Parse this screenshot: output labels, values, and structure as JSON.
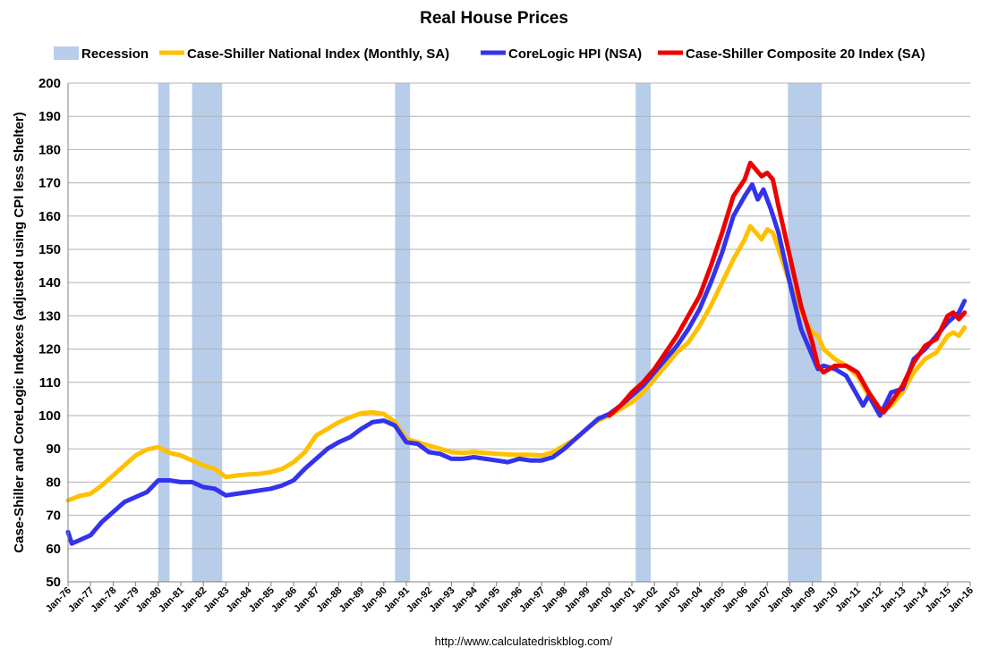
{
  "chart_data": {
    "type": "line",
    "title": "Real House Prices",
    "ylabel": "Case-Shiller and CoreLogic Indexes (adjusted using CPI less Shelter)",
    "xlabel": "",
    "source": "http://www.calculatedriskblog.com/",
    "ylim": [
      50,
      200
    ],
    "yticks": [
      50,
      60,
      70,
      80,
      90,
      100,
      110,
      120,
      130,
      140,
      150,
      160,
      170,
      180,
      190,
      200
    ],
    "xlim": [
      "1976-01",
      "2016-01"
    ],
    "xtick_labels": [
      "Jan-76",
      "Jan-77",
      "Jan-78",
      "Jan-79",
      "Jan-80",
      "Jan-81",
      "Jan-82",
      "Jan-83",
      "Jan-84",
      "Jan-85",
      "Jan-86",
      "Jan-87",
      "Jan-88",
      "Jan-89",
      "Jan-90",
      "Jan-91",
      "Jan-92",
      "Jan-93",
      "Jan-94",
      "Jan-95",
      "Jan-96",
      "Jan-97",
      "Jan-98",
      "Jan-99",
      "Jan-00",
      "Jan-01",
      "Jan-02",
      "Jan-03",
      "Jan-04",
      "Jan-05",
      "Jan-06",
      "Jan-07",
      "Jan-08",
      "Jan-09",
      "Jan-10",
      "Jan-11",
      "Jan-12",
      "Jan-13",
      "Jan-14",
      "Jan-15",
      "Jan-16"
    ],
    "grid": true,
    "legend_position": "top",
    "recession_label": "Recession",
    "recession_color": "#b7cdea",
    "recessions": [
      [
        "1980-01",
        "1980-07"
      ],
      [
        "1981-07",
        "1982-11"
      ],
      [
        "1990-07",
        "1991-03"
      ],
      [
        "2001-03",
        "2001-11"
      ],
      [
        "2007-12",
        "2009-06"
      ]
    ],
    "series": [
      {
        "name": "Case-Shiller National Index (Monthly, SA)",
        "color": "#ffc000",
        "points": [
          [
            "1976-01",
            74.5
          ],
          [
            "1976-07",
            75.8
          ],
          [
            "1977-01",
            76.5
          ],
          [
            "1977-07",
            79
          ],
          [
            "1978-01",
            82
          ],
          [
            "1978-07",
            85
          ],
          [
            "1979-01",
            88
          ],
          [
            "1979-07",
            89.8
          ],
          [
            "1980-01",
            90.5
          ],
          [
            "1980-07",
            88.8
          ],
          [
            "1981-01",
            88
          ],
          [
            "1981-07",
            86.5
          ],
          [
            "1982-01",
            85
          ],
          [
            "1982-07",
            84
          ],
          [
            "1983-01",
            81.5
          ],
          [
            "1983-07",
            82
          ],
          [
            "1984-01",
            82.3
          ],
          [
            "1984-07",
            82.5
          ],
          [
            "1985-01",
            83
          ],
          [
            "1985-07",
            84
          ],
          [
            "1986-01",
            86
          ],
          [
            "1986-07",
            89
          ],
          [
            "1987-01",
            94
          ],
          [
            "1987-07",
            96
          ],
          [
            "1988-01",
            98
          ],
          [
            "1988-07",
            99.5
          ],
          [
            "1989-01",
            100.7
          ],
          [
            "1989-07",
            101
          ],
          [
            "1990-01",
            100.5
          ],
          [
            "1990-07",
            98
          ],
          [
            "1991-01",
            93
          ],
          [
            "1991-07",
            92
          ],
          [
            "1992-01",
            91
          ],
          [
            "1992-07",
            90
          ],
          [
            "1993-01",
            89
          ],
          [
            "1993-07",
            88.8
          ],
          [
            "1994-01",
            89
          ],
          [
            "1994-07",
            88.8
          ],
          [
            "1995-01",
            88.5
          ],
          [
            "1995-07",
            88.3
          ],
          [
            "1996-01",
            88.2
          ],
          [
            "1996-07",
            88.2
          ],
          [
            "1997-01",
            88
          ],
          [
            "1997-07",
            89
          ],
          [
            "1998-01",
            91
          ],
          [
            "1998-07",
            93
          ],
          [
            "1999-01",
            96
          ],
          [
            "1999-07",
            98.5
          ],
          [
            "2000-01",
            100
          ],
          [
            "2000-07",
            102
          ],
          [
            "2001-01",
            104
          ],
          [
            "2001-07",
            107
          ],
          [
            "2002-01",
            111
          ],
          [
            "2002-07",
            115
          ],
          [
            "2003-01",
            119
          ],
          [
            "2003-07",
            122
          ],
          [
            "2004-01",
            127
          ],
          [
            "2004-07",
            133
          ],
          [
            "2005-01",
            140
          ],
          [
            "2005-07",
            147
          ],
          [
            "2006-01",
            153
          ],
          [
            "2006-04",
            157
          ],
          [
            "2006-07",
            155
          ],
          [
            "2006-10",
            153
          ],
          [
            "2007-01",
            156
          ],
          [
            "2007-04",
            155
          ],
          [
            "2007-07",
            150
          ],
          [
            "2008-01",
            140
          ],
          [
            "2008-07",
            131
          ],
          [
            "2009-01",
            125
          ],
          [
            "2009-04",
            124
          ],
          [
            "2009-07",
            120
          ],
          [
            "2010-01",
            117
          ],
          [
            "2010-07",
            115
          ],
          [
            "2011-01",
            112
          ],
          [
            "2011-07",
            106
          ],
          [
            "2012-01",
            101
          ],
          [
            "2012-07",
            103
          ],
          [
            "2013-01",
            107
          ],
          [
            "2013-07",
            113
          ],
          [
            "2014-01",
            117
          ],
          [
            "2014-07",
            119
          ],
          [
            "2015-01",
            124
          ],
          [
            "2015-04",
            125
          ],
          [
            "2015-07",
            124
          ],
          [
            "2015-10",
            126.5
          ]
        ]
      },
      {
        "name": "CoreLogic HPI (NSA)",
        "color": "#3333ee",
        "points": [
          [
            "1976-01",
            65
          ],
          [
            "1976-03",
            61.5
          ],
          [
            "1976-07",
            62.5
          ],
          [
            "1977-01",
            64
          ],
          [
            "1977-07",
            68
          ],
          [
            "1978-01",
            71
          ],
          [
            "1978-07",
            74
          ],
          [
            "1979-01",
            75.5
          ],
          [
            "1979-07",
            77
          ],
          [
            "1980-01",
            80.5
          ],
          [
            "1980-07",
            80.5
          ],
          [
            "1981-01",
            80
          ],
          [
            "1981-07",
            80
          ],
          [
            "1982-01",
            78.5
          ],
          [
            "1982-07",
            78
          ],
          [
            "1983-01",
            76
          ],
          [
            "1983-07",
            76.5
          ],
          [
            "1984-01",
            77
          ],
          [
            "1984-07",
            77.5
          ],
          [
            "1985-01",
            78
          ],
          [
            "1985-07",
            79
          ],
          [
            "1986-01",
            80.5
          ],
          [
            "1986-07",
            84
          ],
          [
            "1987-01",
            87
          ],
          [
            "1987-07",
            90
          ],
          [
            "1988-01",
            92
          ],
          [
            "1988-07",
            93.5
          ],
          [
            "1989-01",
            96
          ],
          [
            "1989-07",
            98
          ],
          [
            "1990-01",
            98.5
          ],
          [
            "1990-07",
            97
          ],
          [
            "1991-01",
            92
          ],
          [
            "1991-07",
            91.5
          ],
          [
            "1992-01",
            89
          ],
          [
            "1992-07",
            88.5
          ],
          [
            "1993-01",
            87
          ],
          [
            "1993-07",
            87
          ],
          [
            "1994-01",
            87.5
          ],
          [
            "1994-07",
            87
          ],
          [
            "1995-01",
            86.5
          ],
          [
            "1995-07",
            86
          ],
          [
            "1996-01",
            87
          ],
          [
            "1996-07",
            86.5
          ],
          [
            "1997-01",
            86.5
          ],
          [
            "1997-07",
            87.5
          ],
          [
            "1998-01",
            90
          ],
          [
            "1998-07",
            93
          ],
          [
            "1999-01",
            96
          ],
          [
            "1999-07",
            99
          ],
          [
            "2000-01",
            100.5
          ],
          [
            "2000-07",
            103
          ],
          [
            "2001-01",
            106
          ],
          [
            "2001-07",
            109
          ],
          [
            "2002-01",
            113
          ],
          [
            "2002-07",
            117
          ],
          [
            "2003-01",
            121
          ],
          [
            "2003-07",
            126
          ],
          [
            "2004-01",
            132
          ],
          [
            "2004-07",
            140
          ],
          [
            "2005-01",
            149
          ],
          [
            "2005-07",
            160
          ],
          [
            "2006-01",
            166
          ],
          [
            "2006-05",
            169.5
          ],
          [
            "2006-08",
            165
          ],
          [
            "2006-11",
            168
          ],
          [
            "2007-03",
            162
          ],
          [
            "2007-07",
            155
          ],
          [
            "2008-01",
            140
          ],
          [
            "2008-07",
            126
          ],
          [
            "2009-01",
            118
          ],
          [
            "2009-04",
            114
          ],
          [
            "2009-07",
            115
          ],
          [
            "2010-01",
            114
          ],
          [
            "2010-07",
            112
          ],
          [
            "2011-01",
            106
          ],
          [
            "2011-04",
            103
          ],
          [
            "2011-07",
            106
          ],
          [
            "2012-01",
            100
          ],
          [
            "2012-07",
            107
          ],
          [
            "2013-01",
            108
          ],
          [
            "2013-07",
            117
          ],
          [
            "2014-01",
            120
          ],
          [
            "2014-07",
            124
          ],
          [
            "2015-01",
            128
          ],
          [
            "2015-07",
            131
          ],
          [
            "2015-10",
            134.5
          ]
        ]
      },
      {
        "name": "Case-Shiller Composite 20 Index (SA)",
        "color": "#ee0000",
        "points": [
          [
            "2000-01",
            100
          ],
          [
            "2000-07",
            103
          ],
          [
            "2001-01",
            107
          ],
          [
            "2001-07",
            110
          ],
          [
            "2002-01",
            114
          ],
          [
            "2002-07",
            119
          ],
          [
            "2003-01",
            124
          ],
          [
            "2003-07",
            130
          ],
          [
            "2004-01",
            136
          ],
          [
            "2004-07",
            145
          ],
          [
            "2005-01",
            155
          ],
          [
            "2005-07",
            166
          ],
          [
            "2006-01",
            171
          ],
          [
            "2006-04",
            176
          ],
          [
            "2006-07",
            174
          ],
          [
            "2006-10",
            172
          ],
          [
            "2007-01",
            173
          ],
          [
            "2007-04",
            171
          ],
          [
            "2007-07",
            163
          ],
          [
            "2008-01",
            148
          ],
          [
            "2008-07",
            133
          ],
          [
            "2009-01",
            122
          ],
          [
            "2009-04",
            115
          ],
          [
            "2009-07",
            113
          ],
          [
            "2010-01",
            115
          ],
          [
            "2010-07",
            115
          ],
          [
            "2011-01",
            113
          ],
          [
            "2011-07",
            107
          ],
          [
            "2012-01",
            102
          ],
          [
            "2012-03",
            101
          ],
          [
            "2012-07",
            104
          ],
          [
            "2013-01",
            109
          ],
          [
            "2013-07",
            116
          ],
          [
            "2014-01",
            121
          ],
          [
            "2014-07",
            123
          ],
          [
            "2015-01",
            130
          ],
          [
            "2015-04",
            131
          ],
          [
            "2015-07",
            129
          ],
          [
            "2015-10",
            131
          ]
        ]
      }
    ]
  }
}
